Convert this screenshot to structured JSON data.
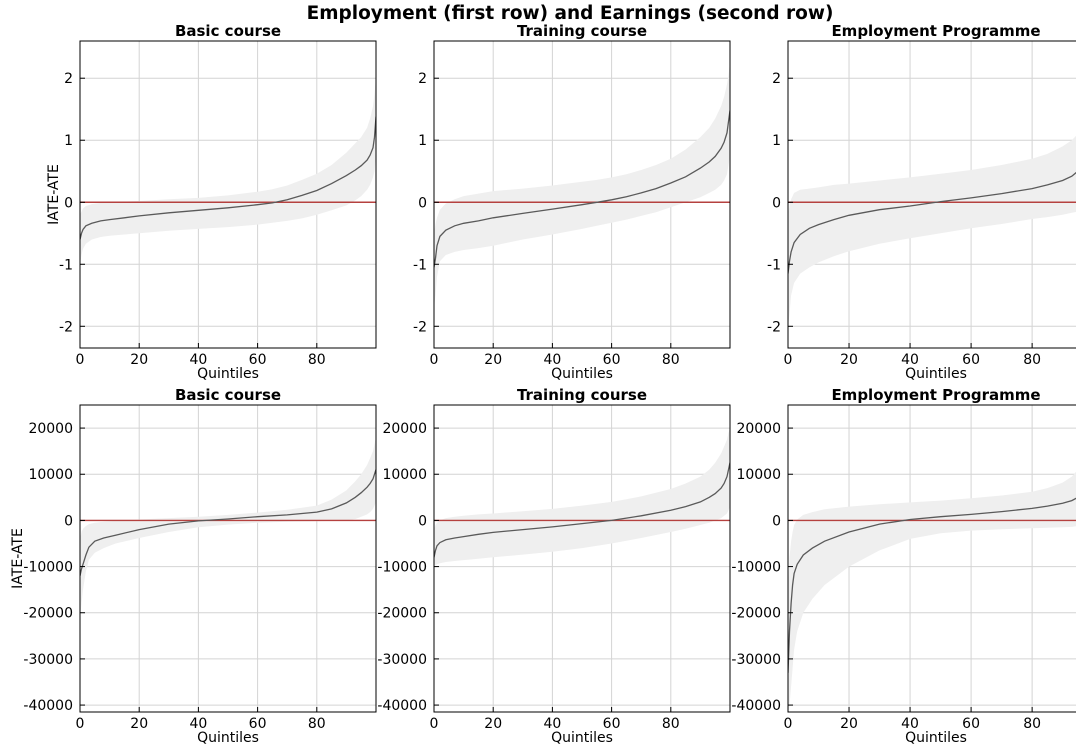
{
  "figure": {
    "suptitle": "Employment (first row) and Earnings (second row)"
  },
  "chart_data": [
    {
      "type": "line",
      "title": "Basic course",
      "xlabel": "Quintiles",
      "ylabel": "IATE-ATE",
      "xlim": [
        0,
        100
      ],
      "ylim": [
        -2.35,
        2.6
      ],
      "xticks": [
        0,
        20,
        40,
        60,
        80
      ],
      "yticks": [
        2,
        1,
        0,
        -1,
        -2
      ],
      "ytick_labels": [
        "2",
        "1",
        "0",
        "-1",
        "-2"
      ],
      "grid": true,
      "reference_line": 0,
      "x": [
        0,
        0.5,
        1,
        2,
        4,
        7,
        10,
        15,
        20,
        30,
        40,
        50,
        60,
        65,
        70,
        75,
        80,
        85,
        90,
        93,
        95,
        97,
        98,
        99,
        99.5,
        100
      ],
      "iate_minus_ate": [
        -0.6,
        -0.5,
        -0.44,
        -0.38,
        -0.34,
        -0.3,
        -0.28,
        -0.25,
        -0.22,
        -0.17,
        -0.13,
        -0.09,
        -0.04,
        -0.01,
        0.04,
        0.11,
        0.19,
        0.3,
        0.43,
        0.52,
        0.59,
        0.68,
        0.76,
        0.88,
        1.05,
        1.38
      ],
      "band_upper": [
        -0.2,
        -0.15,
        -0.1,
        -0.06,
        -0.03,
        -0.01,
        0.0,
        0.01,
        0.02,
        0.05,
        0.07,
        0.11,
        0.17,
        0.21,
        0.27,
        0.36,
        0.46,
        0.6,
        0.8,
        0.95,
        1.05,
        1.2,
        1.35,
        1.55,
        1.75,
        2.0
      ],
      "band_lower": [
        -1.0,
        -0.85,
        -0.75,
        -0.67,
        -0.6,
        -0.56,
        -0.54,
        -0.52,
        -0.5,
        -0.46,
        -0.43,
        -0.4,
        -0.36,
        -0.33,
        -0.3,
        -0.26,
        -0.2,
        -0.13,
        -0.05,
        0.03,
        0.1,
        0.2,
        0.28,
        0.4,
        0.5,
        0.75
      ]
    },
    {
      "type": "line",
      "title": "Training course",
      "xlabel": "Quintiles",
      "ylabel": "",
      "xlim": [
        0,
        100
      ],
      "ylim": [
        -2.35,
        2.6
      ],
      "xticks": [
        0,
        20,
        40,
        60,
        80
      ],
      "yticks": [
        2,
        1,
        0,
        -1,
        -2
      ],
      "ytick_labels": [
        "2",
        "1",
        "0",
        "-1",
        "-2"
      ],
      "grid": true,
      "reference_line": 0,
      "x": [
        0,
        0.5,
        1,
        2,
        4,
        7,
        10,
        15,
        20,
        30,
        40,
        50,
        55,
        60,
        65,
        70,
        75,
        80,
        85,
        90,
        93,
        95,
        97,
        98,
        99,
        99.5,
        100
      ],
      "iate_minus_ate": [
        -1.05,
        -0.9,
        -0.7,
        -0.55,
        -0.45,
        -0.38,
        -0.34,
        -0.3,
        -0.25,
        -0.18,
        -0.11,
        -0.04,
        0.0,
        0.04,
        0.09,
        0.15,
        0.22,
        0.31,
        0.41,
        0.55,
        0.65,
        0.74,
        0.87,
        0.97,
        1.12,
        1.3,
        1.48
      ],
      "band_upper": [
        -0.5,
        -0.35,
        -0.25,
        -0.12,
        -0.02,
        0.05,
        0.1,
        0.14,
        0.18,
        0.22,
        0.27,
        0.33,
        0.36,
        0.4,
        0.45,
        0.52,
        0.6,
        0.7,
        0.85,
        1.05,
        1.2,
        1.35,
        1.55,
        1.7,
        1.9,
        2.05,
        2.25
      ],
      "band_lower": [
        -1.7,
        -1.5,
        -1.2,
        -0.95,
        -0.85,
        -0.8,
        -0.77,
        -0.74,
        -0.7,
        -0.6,
        -0.52,
        -0.43,
        -0.38,
        -0.33,
        -0.28,
        -0.22,
        -0.16,
        -0.08,
        0.0,
        0.08,
        0.15,
        0.2,
        0.28,
        0.35,
        0.45,
        0.6,
        0.75
      ]
    },
    {
      "type": "line",
      "title": "Employment Programme",
      "xlabel": "Quintiles",
      "ylabel": "",
      "xlim": [
        0,
        97
      ],
      "ylim": [
        -2.35,
        2.6
      ],
      "xticks": [
        0,
        20,
        40,
        60,
        80
      ],
      "yticks": [
        2,
        1,
        0,
        -1,
        -2
      ],
      "ytick_labels": [
        "2",
        "1",
        "0",
        "-1",
        "-2"
      ],
      "grid": true,
      "reference_line": 0,
      "x": [
        0,
        0.5,
        1,
        2,
        4,
        7,
        10,
        15,
        20,
        30,
        40,
        50,
        60,
        70,
        80,
        85,
        90,
        93,
        95,
        97
      ],
      "iate_minus_ate": [
        -1.15,
        -0.95,
        -0.8,
        -0.65,
        -0.52,
        -0.42,
        -0.36,
        -0.28,
        -0.21,
        -0.12,
        -0.06,
        0.01,
        0.07,
        0.14,
        0.22,
        0.28,
        0.35,
        0.42,
        0.5,
        0.62
      ],
      "band_upper": [
        -0.2,
        -0.05,
        0.05,
        0.15,
        0.2,
        0.22,
        0.24,
        0.28,
        0.3,
        0.35,
        0.4,
        0.46,
        0.52,
        0.6,
        0.7,
        0.78,
        0.9,
        1.0,
        1.1,
        1.25
      ],
      "band_lower": [
        -2.0,
        -1.8,
        -1.5,
        -1.3,
        -1.15,
        -1.05,
        -0.97,
        -0.87,
        -0.79,
        -0.67,
        -0.58,
        -0.5,
        -0.42,
        -0.35,
        -0.27,
        -0.24,
        -0.2,
        -0.17,
        -0.15,
        -0.1
      ]
    },
    {
      "type": "line",
      "title": "Basic course",
      "xlabel": "Quintiles",
      "ylabel": "IATE-ATE",
      "xlim": [
        0,
        100
      ],
      "ylim": [
        -41500,
        25000
      ],
      "xticks": [
        0,
        20,
        40,
        60,
        80
      ],
      "yticks": [
        20000,
        10000,
        0,
        -10000,
        -20000,
        -30000,
        -40000
      ],
      "ytick_labels": [
        "20000",
        "10000",
        "0",
        "-10000",
        "-20000",
        "-30000",
        "-40000"
      ],
      "grid": true,
      "reference_line": 0,
      "x": [
        0,
        0.5,
        1,
        2,
        3,
        5,
        8,
        12,
        20,
        30,
        40,
        50,
        60,
        70,
        80,
        85,
        90,
        93,
        95,
        97,
        98,
        99,
        99.5,
        100
      ],
      "iate_minus_ate": [
        -12000,
        -10500,
        -9500,
        -7500,
        -5800,
        -4500,
        -3800,
        -3200,
        -2000,
        -800,
        -100,
        300,
        800,
        1200,
        1800,
        2500,
        3800,
        5000,
        6000,
        7200,
        8000,
        9000,
        10000,
        11000
      ],
      "band_upper": [
        -4000,
        -2500,
        -1800,
        -1200,
        -800,
        -500,
        -300,
        -100,
        200,
        500,
        800,
        1200,
        1700,
        2300,
        3200,
        4500,
        6500,
        8500,
        10000,
        12000,
        13500,
        15000,
        16500,
        18000
      ],
      "band_lower": [
        -21000,
        -18000,
        -15000,
        -11000,
        -8500,
        -7000,
        -6000,
        -5000,
        -3800,
        -2500,
        -1500,
        -900,
        -500,
        -300,
        -200,
        -100,
        0,
        300,
        800,
        1300,
        1800,
        2500,
        3200,
        4000
      ]
    },
    {
      "type": "line",
      "title": "Training course",
      "xlabel": "Quintiles",
      "ylabel": "",
      "xlim": [
        0,
        100
      ],
      "ylim": [
        -41500,
        25000
      ],
      "xticks": [
        0,
        20,
        40,
        60,
        80
      ],
      "yticks": [
        20000,
        10000,
        0,
        -10000,
        -20000,
        -30000,
        -40000
      ],
      "ytick_labels": [
        "20000",
        "10000",
        "0",
        "-10000",
        "-20000",
        "-30000",
        "-40000"
      ],
      "grid": true,
      "reference_line": 0,
      "x": [
        0,
        0.5,
        1,
        2,
        4,
        7,
        10,
        15,
        20,
        30,
        40,
        50,
        60,
        65,
        70,
        80,
        85,
        90,
        93,
        95,
        97,
        98,
        99,
        99.5,
        100
      ],
      "iate_minus_ate": [
        -8000,
        -6500,
        -5500,
        -4800,
        -4200,
        -3800,
        -3500,
        -3000,
        -2600,
        -2000,
        -1400,
        -700,
        0,
        500,
        1000,
        2200,
        3000,
        4000,
        5000,
        5800,
        7000,
        8000,
        9500,
        11000,
        12500
      ],
      "band_upper": [
        -2000,
        -1000,
        -500,
        0,
        500,
        800,
        1000,
        1300,
        1500,
        2000,
        2500,
        3200,
        4000,
        4600,
        5200,
        6800,
        8000,
        9500,
        11000,
        12500,
        14500,
        16000,
        17500,
        19000,
        20000
      ],
      "band_lower": [
        -9800,
        -9700,
        -9500,
        -9300,
        -9000,
        -8800,
        -8600,
        -8300,
        -8000,
        -7400,
        -6800,
        -6000,
        -5000,
        -4400,
        -3800,
        -2500,
        -1800,
        -1000,
        -500,
        0,
        500,
        1000,
        1500,
        2200,
        3000
      ]
    },
    {
      "type": "line",
      "title": "Employment Programme",
      "xlabel": "Quintiles",
      "ylabel": "",
      "xlim": [
        0,
        97
      ],
      "ylim": [
        -41500,
        25000
      ],
      "xticks": [
        0,
        20,
        40,
        60,
        80
      ],
      "yticks": [
        20000,
        10000,
        0,
        -10000,
        -20000,
        -30000,
        -40000
      ],
      "ytick_labels": [
        "20000",
        "10000",
        "0",
        "-10000",
        "-20000",
        "-30000",
        "-40000"
      ],
      "grid": true,
      "reference_line": 0,
      "x": [
        0,
        0.5,
        1,
        1.5,
        2,
        3,
        5,
        8,
        12,
        20,
        30,
        40,
        50,
        60,
        70,
        80,
        85,
        90,
        93,
        95,
        97
      ],
      "iate_minus_ate": [
        -33000,
        -24000,
        -18000,
        -14000,
        -11500,
        -9500,
        -7500,
        -6000,
        -4500,
        -2500,
        -800,
        200,
        800,
        1300,
        1900,
        2600,
        3100,
        3700,
        4300,
        5000,
        6300
      ],
      "band_upper": [
        -15000,
        -8000,
        -4500,
        -2500,
        -1000,
        200,
        1200,
        1800,
        2400,
        3000,
        3500,
        3900,
        4300,
        4800,
        5400,
        6200,
        7000,
        8200,
        9500,
        11000,
        14000
      ],
      "band_lower": [
        -42000,
        -40000,
        -36000,
        -32000,
        -28000,
        -24000,
        -20000,
        -17000,
        -14000,
        -10000,
        -6500,
        -4000,
        -2800,
        -2200,
        -1900,
        -1700,
        -1600,
        -1500,
        -1400,
        -1200,
        -500
      ]
    }
  ]
}
